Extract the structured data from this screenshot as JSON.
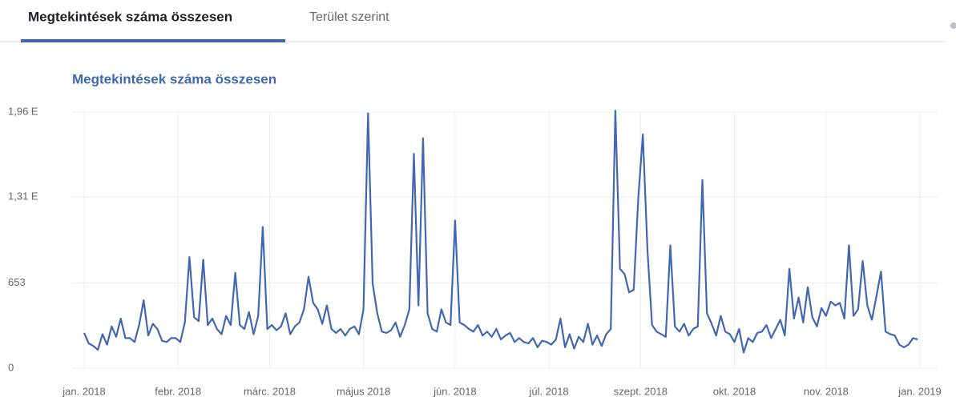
{
  "tabs": [
    "Megtekintések száma összesen",
    "Terület szerint"
  ],
  "chart_data": {
    "type": "line",
    "title": "Megtekintések száma összesen",
    "color": "#4267b2",
    "grid": true,
    "xlim": [
      0,
      365
    ],
    "xticks": [
      {
        "value": 0,
        "label": "jan. 2018"
      },
      {
        "value": 41,
        "label": "febr. 2018"
      },
      {
        "value": 81,
        "label": "márc. 2018"
      },
      {
        "value": 122,
        "label": "május 2018"
      },
      {
        "value": 162,
        "label": "jún. 2018"
      },
      {
        "value": 203,
        "label": "júl. 2018"
      },
      {
        "value": 243,
        "label": "szept. 2018"
      },
      {
        "value": 284,
        "label": "okt. 2018"
      },
      {
        "value": 324,
        "label": "nov. 2018"
      },
      {
        "value": 365,
        "label": "jan. 2019"
      }
    ],
    "ylim": [
      0,
      1960
    ],
    "yticks": [
      0,
      653,
      {
        "value": 1310,
        "label": "1,31 E"
      },
      {
        "value": 1960,
        "label": "1,96 E"
      }
    ],
    "x": [
      0,
      2,
      4,
      6,
      8,
      10,
      12,
      14,
      16,
      18,
      20,
      22,
      24,
      26,
      28,
      30,
      32,
      34,
      36,
      38,
      40,
      42,
      44,
      46,
      48,
      50,
      52,
      54,
      56,
      58,
      60,
      62,
      64,
      66,
      68,
      70,
      72,
      74,
      76,
      78,
      80,
      82,
      84,
      86,
      88,
      90,
      92,
      94,
      96,
      98,
      100,
      102,
      104,
      106,
      108,
      110,
      112,
      114,
      116,
      118,
      120,
      122,
      124,
      126,
      128,
      130,
      132,
      134,
      136,
      138,
      140,
      142,
      144,
      146,
      148,
      150,
      152,
      154,
      156,
      158,
      160,
      162,
      164,
      166,
      168,
      170,
      172,
      174,
      176,
      178,
      180,
      182,
      184,
      186,
      188,
      190,
      192,
      194,
      196,
      198,
      200,
      202,
      204,
      206,
      208,
      210,
      212,
      214,
      216,
      218,
      220,
      222,
      224,
      226,
      228,
      230,
      232,
      234,
      236,
      238,
      240,
      242,
      244,
      246,
      248,
      250,
      252,
      254,
      256,
      258,
      260,
      262,
      264,
      266,
      268,
      270,
      272,
      274,
      276,
      278,
      280,
      282,
      284,
      286,
      288,
      290,
      292,
      294,
      296,
      298,
      300,
      302,
      304,
      306,
      308,
      310,
      312,
      314,
      316,
      318,
      320,
      322,
      324,
      326,
      328,
      330,
      332,
      334,
      336,
      338,
      340,
      342,
      344,
      346,
      348,
      350,
      352,
      354,
      356,
      358,
      360,
      362,
      364
    ],
    "values": [
      270,
      190,
      170,
      140,
      260,
      180,
      320,
      240,
      380,
      230,
      230,
      200,
      330,
      520,
      250,
      340,
      300,
      210,
      200,
      230,
      230,
      200,
      350,
      850,
      390,
      360,
      830,
      330,
      380,
      300,
      260,
      400,
      330,
      730,
      330,
      300,
      430,
      260,
      400,
      1080,
      300,
      330,
      290,
      320,
      420,
      260,
      320,
      350,
      450,
      700,
      500,
      450,
      340,
      480,
      300,
      270,
      300,
      250,
      300,
      320,
      260,
      450,
      1950,
      650,
      420,
      280,
      270,
      290,
      350,
      240,
      330,
      450,
      1640,
      480,
      1760,
      420,
      300,
      280,
      450,
      350,
      330,
      1130,
      350,
      330,
      300,
      280,
      330,
      250,
      280,
      240,
      300,
      220,
      250,
      270,
      200,
      230,
      200,
      190,
      230,
      160,
      210,
      200,
      180,
      220,
      380,
      160,
      260,
      150,
      240,
      200,
      340,
      180,
      250,
      170,
      260,
      300,
      1970,
      760,
      720,
      580,
      600,
      1300,
      1790,
      900,
      330,
      280,
      260,
      240,
      940,
      320,
      280,
      340,
      250,
      300,
      320,
      1440,
      420,
      340,
      250,
      400,
      280,
      260,
      200,
      300,
      120,
      230,
      200,
      270,
      280,
      330,
      230,
      300,
      370,
      250,
      760,
      380,
      540,
      350,
      620,
      390,
      320,
      460,
      400,
      510,
      480,
      500,
      380,
      940,
      400,
      450,
      820,
      480,
      370,
      550,
      740,
      280,
      260,
      250,
      180,
      160,
      180,
      230,
      220
    ]
  }
}
